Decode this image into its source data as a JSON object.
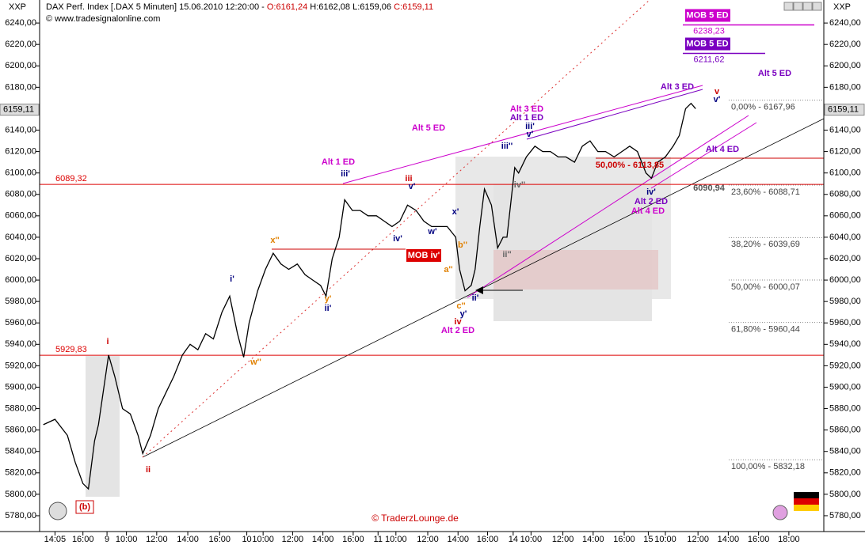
{
  "chart_data": {
    "type": "line",
    "symbol": "XXP",
    "title": "DAX Perf. Index [.DAX  5 Minuten] 15.06.2010 12:20:00 -",
    "ohlc_labels": [
      "O:6161,24",
      "H:6162,08",
      "L:6159,06",
      "C:6159,11"
    ],
    "source": "© www.tradesignalonline.com",
    "copyright": "© TraderzLounge.de",
    "last_price": {
      "value": 6159.11,
      "label": "6159,11"
    },
    "color": "#000000",
    "x": [
      0,
      1.5,
      3.1,
      4.1,
      5.1,
      5.8,
      6.6,
      7.1,
      7.7,
      8.4,
      9.2,
      10.2,
      11.2,
      12.2,
      12.8,
      13.8,
      14.8,
      15.8,
      16.8,
      17.9,
      18.9,
      19.9,
      20.9,
      21.9,
      23.0,
      24.0,
      25.0,
      25.8,
      26.5,
      27.6,
      28.6,
      29.6,
      30.6,
      31.6,
      32.7,
      33.7,
      34.7,
      35.7,
      36.4,
      37.2,
      38.1,
      38.8,
      39.8,
      40.8,
      41.8,
      42.9,
      43.9,
      44.9,
      45.9,
      46.9,
      48.0,
      49.0,
      50.0,
      51.0,
      52.0,
      53.1,
      53.6,
      54.3,
      55.1,
      55.6,
      56.2,
      56.8,
      57.7,
      58.5,
      59.2,
      59.7,
      60.7,
      61.2,
      62.2,
      63.3,
      64.3,
      65.3,
      66.3,
      67.3,
      68.4,
      69.4,
      70.4,
      71.4,
      72.4,
      73.5,
      74.5,
      75.5,
      76.5,
      77.6,
      78.3,
      79.1,
      80.1,
      81.1,
      81.9,
      82.7,
      83.4,
      84.0
    ],
    "values": [
      5865,
      5870,
      5855,
      5830,
      5810,
      5805,
      5850,
      5865,
      5895,
      5930,
      5910,
      5880,
      5875,
      5855,
      5838,
      5855,
      5880,
      5895,
      5910,
      5930,
      5940,
      5935,
      5950,
      5945,
      5970,
      5985,
      5950,
      5928,
      5960,
      5990,
      6010,
      6025,
      6015,
      6010,
      6015,
      6005,
      6000,
      5995,
      5985,
      6020,
      6040,
      6075,
      6065,
      6065,
      6060,
      6060,
      6055,
      6050,
      6055,
      6070,
      6065,
      6055,
      6050,
      6050,
      6050,
      6040,
      6010,
      5990,
      5995,
      6010,
      6050,
      6085,
      6070,
      6030,
      6040,
      6040,
      6105,
      6100,
      6115,
      6125,
      6120,
      6120,
      6115,
      6115,
      6110,
      6125,
      6130,
      6120,
      6120,
      6115,
      6120,
      6125,
      6120,
      6100,
      6095,
      6110,
      6115,
      6125,
      6135,
      6160,
      6165,
      6160
    ],
    "xlim": [
      -1.5,
      100.5
    ],
    "xticks": [
      {
        "value": 1.5,
        "label": "14:05"
      },
      {
        "value": 5.1,
        "label": "16:00"
      },
      {
        "value": 8.2,
        "label": "9"
      },
      {
        "value": 10.7,
        "label": "10:00"
      },
      {
        "value": 14.6,
        "label": "12:00"
      },
      {
        "value": 18.6,
        "label": "14:00"
      },
      {
        "value": 22.7,
        "label": "16:00"
      },
      {
        "value": 26.2,
        "label": "10"
      },
      {
        "value": 28.3,
        "label": "10:00"
      },
      {
        "value": 32.1,
        "label": "12:00"
      },
      {
        "value": 36.0,
        "label": "14:00"
      },
      {
        "value": 39.9,
        "label": "16:00"
      },
      {
        "value": 43.1,
        "label": "11"
      },
      {
        "value": 45.4,
        "label": "10:00"
      },
      {
        "value": 49.5,
        "label": "12:00"
      },
      {
        "value": 53.4,
        "label": "14:00"
      },
      {
        "value": 57.2,
        "label": "16:00"
      },
      {
        "value": 60.5,
        "label": "14"
      },
      {
        "value": 62.8,
        "label": "10:00"
      },
      {
        "value": 66.9,
        "label": "12:00"
      },
      {
        "value": 70.8,
        "label": "14:00"
      },
      {
        "value": 74.8,
        "label": "16:00"
      },
      {
        "value": 77.9,
        "label": "15"
      },
      {
        "value": 80.1,
        "label": "10:00"
      },
      {
        "value": 84.3,
        "label": "12:00"
      },
      {
        "value": 88.2,
        "label": "14:00"
      },
      {
        "value": 92.1,
        "label": "16:00"
      },
      {
        "value": 96.0,
        "label": "18:00"
      }
    ],
    "ylim": [
      5765.2,
      6261.5
    ],
    "yticks": [
      {
        "value": 5780,
        "label": "5780,00"
      },
      {
        "value": 5800,
        "label": "5800,00"
      },
      {
        "value": 5820,
        "label": "5820,00"
      },
      {
        "value": 5840,
        "label": "5840,00"
      },
      {
        "value": 5860,
        "label": "5860,00"
      },
      {
        "value": 5880,
        "label": "5880,00"
      },
      {
        "value": 5900,
        "label": "5900,00"
      },
      {
        "value": 5920,
        "label": "5920,00"
      },
      {
        "value": 5940,
        "label": "5940,00"
      },
      {
        "value": 5960,
        "label": "5960,00"
      },
      {
        "value": 5980,
        "label": "5980,00"
      },
      {
        "value": 6000,
        "label": "6000,00"
      },
      {
        "value": 6020,
        "label": "6020,00"
      },
      {
        "value": 6040,
        "label": "6040,00"
      },
      {
        "value": 6060,
        "label": "6060,00"
      },
      {
        "value": 6080,
        "label": "6080,00"
      },
      {
        "value": 6100,
        "label": "6100,00"
      },
      {
        "value": 6120,
        "label": "6120,00"
      },
      {
        "value": 6140,
        "label": "6140,00"
      },
      {
        "value": 6160,
        "label": "6160,00"
      },
      {
        "value": 6180,
        "label": "6180,00"
      },
      {
        "value": 6200,
        "label": "6200,00"
      },
      {
        "value": 6220,
        "label": "6220,00"
      },
      {
        "value": 6240,
        "label": "6240,00"
      }
    ],
    "levels": [
      {
        "value": 6089.32,
        "label": "6089,32"
      },
      {
        "value": 5929.83,
        "label": "5929,83"
      }
    ],
    "level_color": "#dd0000",
    "fib_levels": [
      {
        "value": 6167.96,
        "label": "0,00% - 6167,96"
      },
      {
        "value": 6088.71,
        "label": "23,60% - 6088,71"
      },
      {
        "value": 6039.69,
        "label": "38,20% - 6039,69"
      },
      {
        "value": 6000.07,
        "label": "50,00% - 6000,07"
      },
      {
        "value": 5960.44,
        "label": "61,80% - 5960,44"
      },
      {
        "value": 5832.18,
        "label": "100,00% - 5832,18"
      }
    ],
    "mob_targets": [
      {
        "label": "MOB 5 ED",
        "value": 6238.23,
        "value_label": "6238,23",
        "color": "#cc00cc"
      },
      {
        "label": "MOB 5 ED",
        "value": 6211.62,
        "value_label": "6211,62",
        "color": "#7a00c0"
      }
    ],
    "annotations": [
      {
        "text": "i",
        "color": "#cc0000"
      },
      {
        "text": "ii",
        "color": "#cc0000"
      },
      {
        "text": "(b)",
        "color": "#cc0000"
      },
      {
        "text": "w''",
        "color": "#e08000"
      },
      {
        "text": "x''",
        "color": "#e08000"
      },
      {
        "text": "y'",
        "color": "#e08000"
      },
      {
        "text": "ii'",
        "color": "#000080"
      },
      {
        "text": "i'",
        "color": "#000080"
      },
      {
        "text": "Alt 1 ED",
        "color": "#cc00cc"
      },
      {
        "text": "iii'",
        "color": "#000080"
      },
      {
        "text": "iii",
        "color": "#cc0000"
      },
      {
        "text": "v'",
        "color": "#000080"
      },
      {
        "text": "iv'",
        "color": "#000080"
      },
      {
        "text": "w'",
        "color": "#000080"
      },
      {
        "text": "x'",
        "color": "#000080"
      },
      {
        "text": "b''",
        "color": "#e08000"
      },
      {
        "text": "MOB iv'",
        "color": "#ffffff"
      },
      {
        "text": "a''",
        "color": "#e08000"
      },
      {
        "text": "ii'",
        "color": "#000080"
      },
      {
        "text": "c''",
        "color": "#e08000"
      },
      {
        "text": "y'",
        "color": "#000080"
      },
      {
        "text": "iv",
        "color": "#cc0000"
      },
      {
        "text": "Alt 2 ED",
        "color": "#cc00cc"
      },
      {
        "text": "ii''",
        "color": "#666666"
      },
      {
        "text": "iii''",
        "color": "#000080"
      },
      {
        "text": "iv''",
        "color": "#666666"
      },
      {
        "text": "Alt 5 ED",
        "color": "#cc00cc"
      },
      {
        "text": "Alt 3 ED",
        "color": "#cc00cc"
      },
      {
        "text": "Alt 1 ED",
        "color": "#7a00c0"
      },
      {
        "text": "iii'",
        "color": "#000080"
      },
      {
        "text": "v'",
        "color": "#000080"
      },
      {
        "text": "50,00% - 6113,85",
        "color": "#cc0000"
      },
      {
        "text": "6090,94",
        "color": "#555555"
      },
      {
        "text": "iv'",
        "color": "#000080"
      },
      {
        "text": "Alt 2 ED",
        "color": "#7a00c0"
      },
      {
        "text": "Alt 4 ED",
        "color": "#cc00cc"
      },
      {
        "text": "Alt 4 ED",
        "color": "#7a00c0"
      },
      {
        "text": "Alt 3 ED",
        "color": "#7a00c0"
      },
      {
        "text": "v",
        "color": "#cc0000"
      },
      {
        "text": "v'",
        "color": "#000080"
      },
      {
        "text": "Alt 5 ED",
        "color": "#7a00c0"
      }
    ]
  }
}
